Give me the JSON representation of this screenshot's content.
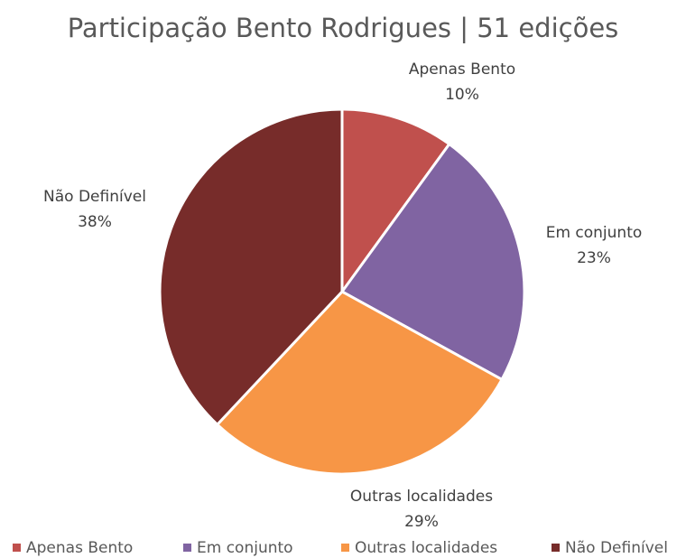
{
  "chart_data": {
    "type": "pie",
    "title": "Participação Bento Rodrigues | 51 edições",
    "categories": [
      "Apenas Bento",
      "Em conjunto",
      "Outras localidades",
      "Não Definível"
    ],
    "values": [
      10,
      23,
      29,
      38
    ],
    "value_labels": [
      "10%",
      "23%",
      "29%",
      "38%"
    ],
    "colors": [
      "#c0504d",
      "#8064a2",
      "#f79646",
      "#772c2a"
    ],
    "legend": "bottom"
  }
}
